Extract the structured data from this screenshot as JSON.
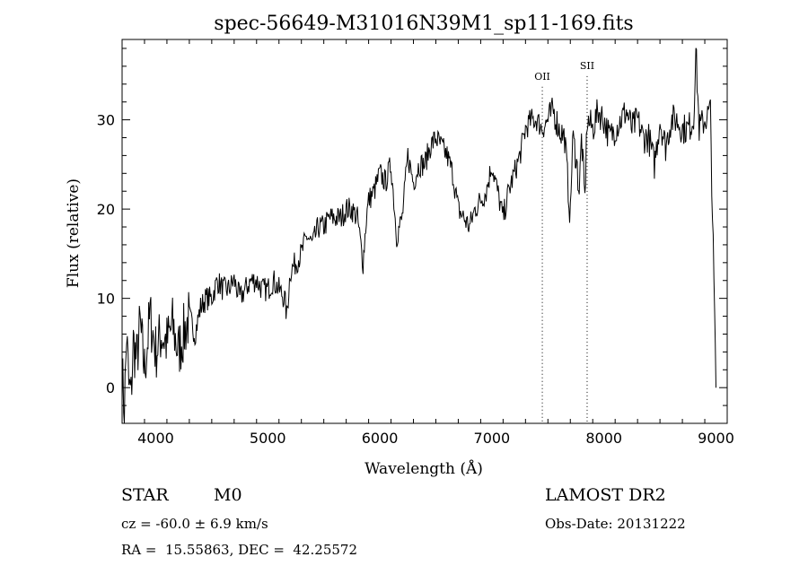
{
  "chart_data": {
    "type": "line",
    "title": "spec-56649-M31016N39M1_sp11-169.fits",
    "xlabel": "Wavelength (Å)",
    "ylabel": "Flux (relative)",
    "xlim": [
      3700,
      9100
    ],
    "ylim": [
      -4,
      39
    ],
    "xticks": [
      4000,
      5000,
      6000,
      7000,
      8000,
      9000
    ],
    "yticks": [
      0,
      10,
      20,
      30
    ],
    "grid": false,
    "legend": "none",
    "series": [
      {
        "x": [
          3700,
          3720,
          3740,
          3760,
          3780,
          3800,
          3830,
          3860,
          3900,
          3950,
          4000,
          4050,
          4100,
          4150,
          4200,
          4250,
          4300,
          4350,
          4400,
          4450,
          4500,
          4550,
          4600,
          4650,
          4700,
          4750,
          4800,
          4850,
          4900,
          4950,
          5000,
          5050,
          5100,
          5150,
          5170,
          5200,
          5250,
          5300,
          5350,
          5400,
          5450,
          5500,
          5550,
          5600,
          5650,
          5700,
          5750,
          5800,
          5850,
          5880,
          5900,
          5950,
          6000,
          6050,
          6100,
          6150,
          6200,
          6250,
          6300,
          6350,
          6400,
          6450,
          6500,
          6550,
          6600,
          6650,
          6700,
          6750,
          6800,
          6850,
          6900,
          6950,
          7000,
          7050,
          7100,
          7150,
          7200,
          7250,
          7300,
          7350,
          7400,
          7450,
          7500,
          7550,
          7600,
          7650,
          7700,
          7720,
          7750,
          7780,
          7800,
          7830,
          7850,
          7900,
          7950,
          8000,
          8050,
          8100,
          8150,
          8200,
          8250,
          8300,
          8350,
          8400,
          8450,
          8500,
          8550,
          8600,
          8650,
          8700,
          8750,
          8800,
          8820,
          8850,
          8900,
          8950,
          9000
        ],
        "values": [
          2,
          -3,
          6,
          0,
          -1,
          5,
          3,
          7,
          2,
          8,
          4,
          6,
          5,
          7,
          4,
          6,
          8,
          6,
          9,
          10,
          10,
          12,
          11,
          11,
          12,
          10,
          11,
          12,
          12,
          11,
          11,
          12,
          11,
          10,
          8,
          13,
          14,
          15,
          17,
          16,
          18,
          18,
          19,
          19,
          19,
          20,
          20,
          19,
          14,
          19,
          21,
          22,
          24,
          23,
          25,
          17,
          19,
          26,
          23,
          25,
          25,
          27,
          28,
          27,
          26,
          24,
          20,
          19,
          18,
          20,
          21,
          22,
          25,
          22,
          19,
          22,
          24,
          26,
          29,
          30,
          30,
          29,
          30,
          31,
          29,
          28,
          19,
          28,
          26,
          22,
          28,
          21,
          30,
          29,
          31,
          30,
          28,
          29,
          30,
          31,
          29,
          30,
          28,
          28,
          25,
          30,
          27,
          30,
          30,
          29,
          29,
          30,
          38,
          29,
          30,
          31,
          0
        ]
      }
    ],
    "annotations": [
      {
        "label": "OII",
        "x": 7450,
        "y": 34.5
      },
      {
        "label": "SII",
        "x": 7850,
        "y": 35.7
      }
    ]
  },
  "info": {
    "class": "STAR",
    "subclass": "M0",
    "survey": "LAMOST DR2",
    "redshift": "cz = -60.0 ± 6.9 km/s",
    "obs_date": "Obs-Date: 20131222",
    "coords": "RA =  15.55863, DEC =  42.25572"
  }
}
